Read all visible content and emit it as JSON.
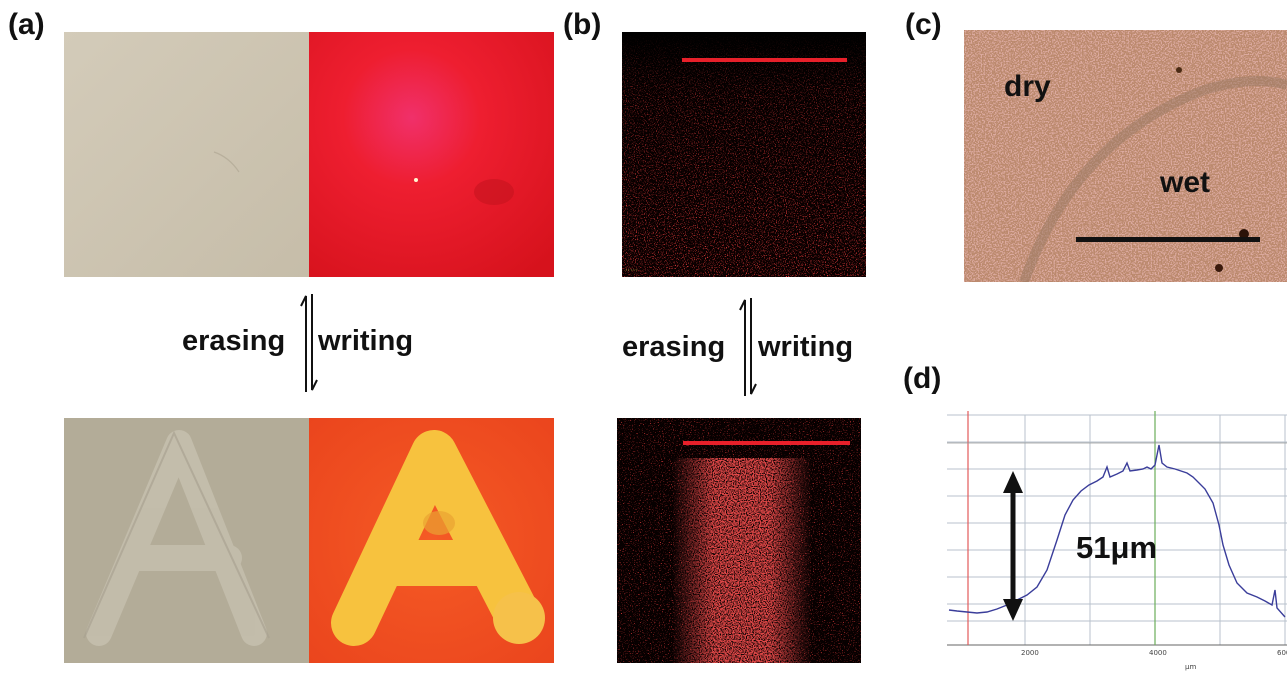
{
  "panels": {
    "a": {
      "label": "(a)"
    },
    "b": {
      "label": "(b)"
    },
    "c": {
      "label": "(c)"
    },
    "d": {
      "label": "(d)"
    }
  },
  "arrows": {
    "left": {
      "erase_label": "erasing",
      "write_label": "writing"
    },
    "right": {
      "erase_label": "erasing",
      "write_label": "writing"
    }
  },
  "micrograph_c": {
    "dry_label": "dry",
    "wet_label": "wet"
  },
  "profile_d": {
    "height_label": "51μm",
    "x_ticks": [
      "2000",
      "4000",
      "600"
    ],
    "x_unit": "μm"
  },
  "colors": {
    "beige": "#cfc6b4",
    "bright_red": "#ec1c24",
    "fluor_red": "#e01818",
    "pink_bg": "#dba79e",
    "orange": "#f24a22",
    "yellow": "#f6c540"
  }
}
